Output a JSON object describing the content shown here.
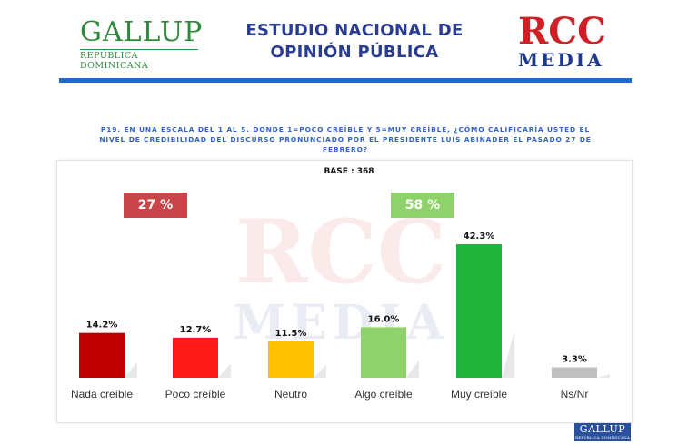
{
  "header": {
    "logo_left": {
      "name": "GALLUP",
      "subtitle": "REPÚBLICA DOMINICANA",
      "color": "#2e8b3a"
    },
    "title_line1": "ESTUDIO NACIONAL DE",
    "title_line2": "OPINIÓN PÚBLICA",
    "logo_right": {
      "line1": "RCC",
      "line2": "MEDIA",
      "color_red": "#d11f26",
      "color_blue": "#1d3a8f"
    },
    "accent_color": "#1f6ad1"
  },
  "question": "P19.  EN UNA ESCALA DEL 1 AL 5. DONDE 1=POCO CREÍBLE Y 5=MUY CREÍBLE, ¿CÓMO CALIFICARÍA USTED EL NIVEL DE CREDIBILIDAD DEL DISCURSO PRONUNCIADO POR EL PRESIDENTE LUIS ABINADER EL PASADO 27 DE FEBRERO?",
  "base_label": "BASE : 368",
  "badges": {
    "negative": {
      "label": "27 %",
      "color": "#c9454a"
    },
    "positive": {
      "label": "58 %",
      "color": "#8fd16a"
    }
  },
  "watermark": {
    "line1": "RCC",
    "line2": "MEDIA"
  },
  "corner_logo": {
    "name": "GALLUP",
    "subtitle": "REPÚBLICA DOMINICANA"
  },
  "chart_data": {
    "type": "bar",
    "categories": [
      "Nada creíble",
      "Poco creíble",
      "Neutro",
      "Algo creíble",
      "Muy creíble",
      "Ns/Nr"
    ],
    "values": [
      14.2,
      12.7,
      11.5,
      16.0,
      42.3,
      3.3
    ],
    "value_labels": [
      "14.2%",
      "12.7%",
      "11.5%",
      "16.0%",
      "42.3%",
      "3.3%"
    ],
    "colors": [
      "#c00000",
      "#ff1a1a",
      "#ffc000",
      "#8fd16a",
      "#22b33a",
      "#bfbfbf"
    ],
    "title": "",
    "xlabel": "",
    "ylabel": "",
    "ylim": [
      0,
      42.3
    ],
    "grid": false,
    "legend": "none"
  }
}
